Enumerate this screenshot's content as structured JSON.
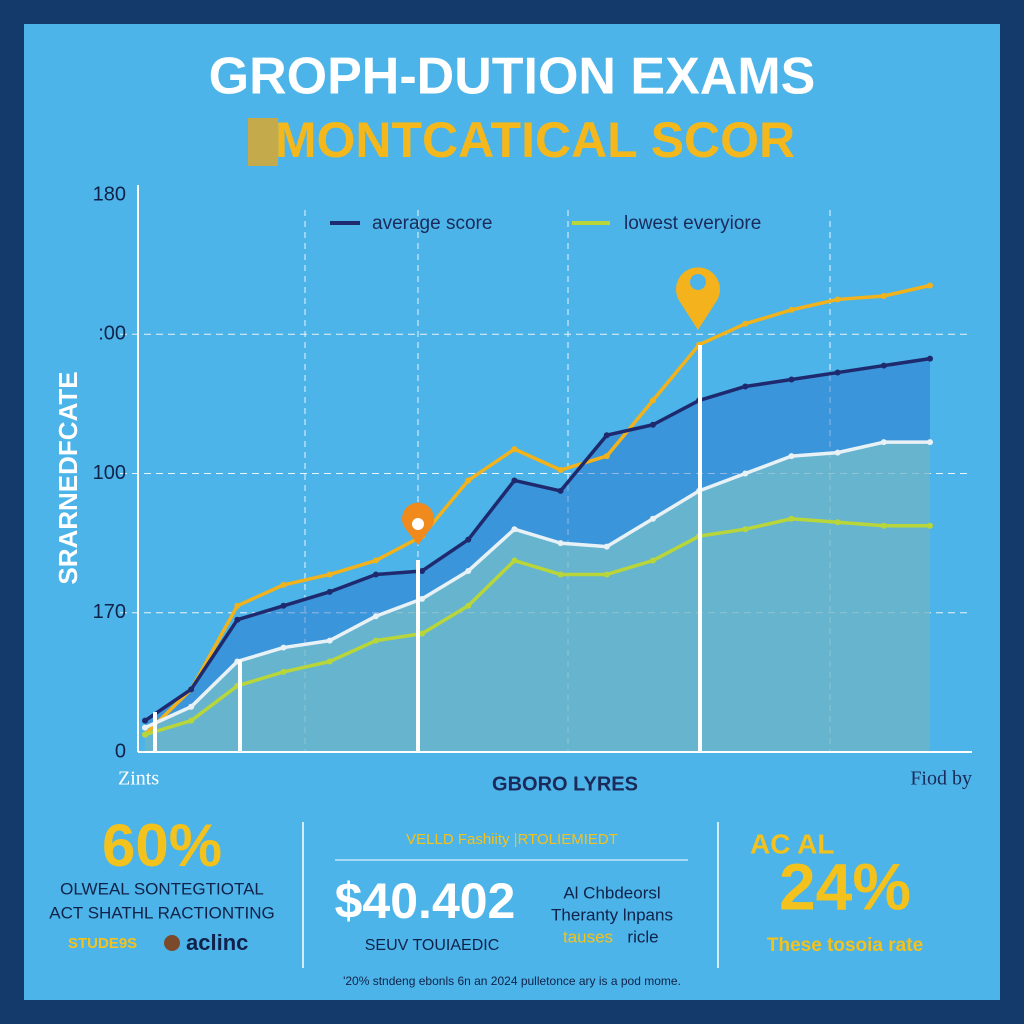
{
  "header": {
    "title": "GROPH-DUTION EXAMS",
    "subtitle": "MONTCATICAL SCOR"
  },
  "chart_data": {
    "type": "line",
    "y_label": "SRARNEDFCATE",
    "x_label": "GBORO LYRES",
    "x_start_label": "Zints",
    "x_end_label": "Fiod by",
    "categories": [
      null,
      null,
      null,
      null,
      null,
      null,
      null,
      null,
      null,
      null,
      null,
      null,
      null,
      null,
      null,
      null,
      null,
      null
    ],
    "ylim": [
      0,
      160
    ],
    "yticks": [
      0,
      {
        "value": 40,
        "label": "170"
      },
      {
        "value": 80,
        "label": "100"
      },
      {
        "value": 120,
        "label": ":00"
      },
      {
        "value": 160,
        "label": "180"
      }
    ],
    "grid": true,
    "series": [
      {
        "color": "#f2b21c",
        "values": [
          5,
          18,
          42,
          48,
          51,
          55,
          62,
          78,
          87,
          81,
          85,
          101,
          117,
          123,
          127,
          130,
          131,
          134
        ]
      },
      {
        "name": "average score",
        "color": "#1f2a6e",
        "fill": "rgba(40,110,205,0.45)",
        "values": [
          9,
          18,
          38,
          42,
          46,
          51,
          52,
          61,
          78,
          75,
          91,
          94,
          101,
          105,
          107,
          109,
          111,
          113
        ]
      },
      {
        "color": "#e8f2f6",
        "fill": "rgba(140,205,195,0.55)",
        "values": [
          7,
          13,
          26,
          30,
          32,
          39,
          44,
          52,
          64,
          60,
          59,
          67,
          75,
          80,
          85,
          86,
          89,
          89
        ]
      },
      {
        "name": "lowest everyiore",
        "color": "#b8d63a",
        "values": [
          5,
          9,
          19,
          23,
          26,
          32,
          34,
          42,
          55,
          51,
          51,
          55,
          62,
          64,
          67,
          66,
          65,
          65
        ]
      }
    ]
  },
  "stats": {
    "left": {
      "value": "60%",
      "line1": "OLWEAL SONTEGTIOTAL",
      "line2": "ACT SHATHL RACTIONTING",
      "tag": "STUDE9S",
      "logo": "aclinc"
    },
    "middle": {
      "heading": "VELLD Fashiity |RTOLIEMIEDT",
      "value": "$40.402",
      "caption": "SEUV TOUIAEDIC",
      "note1": "Al Chbdeorsl",
      "note2": "Theranty lnpans",
      "note3a": "tauses",
      "note3b": "ricle"
    },
    "right": {
      "top": "AC  AL",
      "value": "24%",
      "caption": "These tosoia rate"
    },
    "footnote": "'20% stndeng ebonls 6n an 2024 pulletonce ary is a pod mome."
  }
}
